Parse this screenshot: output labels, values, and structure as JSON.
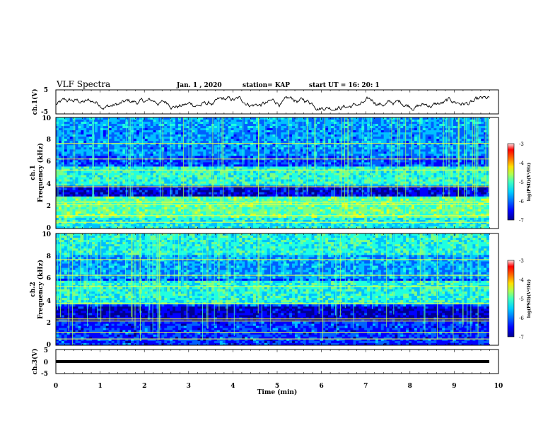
{
  "header": {
    "title": "VLF Spectra",
    "date": "Jan. 1 , 2020",
    "station": "station= KAP",
    "start_ut": "start UT = 16: 20: 1"
  },
  "colors": {
    "colormap": [
      "#000090",
      "#0000ff",
      "#0060ff",
      "#00c0ff",
      "#20ffe0",
      "#80ff80",
      "#e0ff20",
      "#ffc000",
      "#ff6000",
      "#ff0000",
      "#ffffff"
    ]
  },
  "chart_data": [
    {
      "type": "line",
      "name": "ch1-waveform",
      "ylabel": "ch.1(V)",
      "ylim": [
        -5,
        5
      ],
      "yticks": [
        "5",
        "-5"
      ],
      "xlim": [
        0,
        10
      ],
      "description_values": "noisy broadband signal, roughly -3 V to 2 V"
    },
    {
      "type": "heatmap",
      "name": "ch1-spectrogram",
      "ylabel": "ch.1\nFrequency (kHz)",
      "ylim": [
        0,
        10
      ],
      "yticks": [
        "0",
        "2",
        "4",
        "6",
        "8",
        "10"
      ],
      "xlim": [
        0,
        10
      ],
      "colorbar": {
        "label": "log(PSD)(V²/Hz)",
        "range": [
          -7,
          -3
        ],
        "ticks": [
          "-3",
          "-4",
          "-5",
          "-6",
          "-7"
        ]
      }
    },
    {
      "type": "heatmap",
      "name": "ch2-spectrogram",
      "ylabel": "ch.2\nFrequency (kHz)",
      "ylim": [
        0,
        10
      ],
      "yticks": [
        "0",
        "2",
        "4",
        "6",
        "8",
        "10"
      ],
      "xlim": [
        0,
        10
      ],
      "colorbar": {
        "label": "log(PSD)(V²/Hz)",
        "range": [
          -7,
          -3
        ],
        "ticks": [
          "-3",
          "-4",
          "-5",
          "-6",
          "-7"
        ]
      }
    },
    {
      "type": "line",
      "name": "ch3-waveform",
      "ylabel": "ch.3(V)",
      "ylim": [
        -5,
        5
      ],
      "yticks": [
        "5",
        "0",
        "-5"
      ],
      "xlim": [
        0,
        10
      ],
      "xlabel": "Time (min)",
      "xticks": [
        "0",
        "1",
        "2",
        "3",
        "4",
        "5",
        "6",
        "7",
        "8",
        "9",
        "10"
      ],
      "constant_value": 0
    }
  ]
}
